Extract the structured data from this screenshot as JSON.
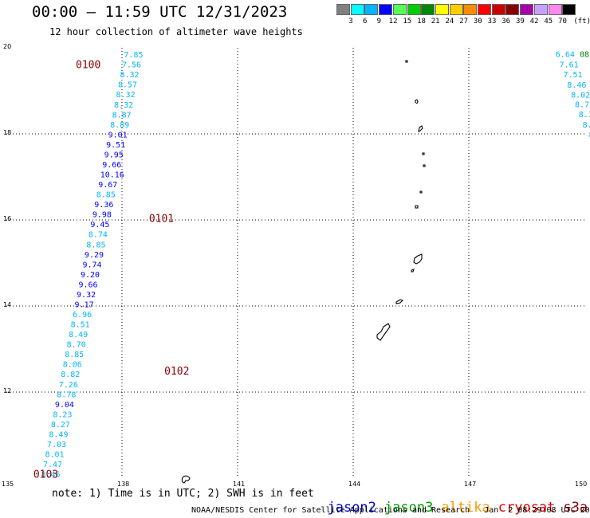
{
  "header": {
    "title": "00:00 – 11:59 UTC 12/31/2023",
    "subtitle": "12 hour collection of altimeter wave heights"
  },
  "legend": {
    "unit": "(ft)",
    "bins": [
      {
        "label": "3",
        "color": "#808080"
      },
      {
        "label": "6",
        "color": "#00ffff"
      },
      {
        "label": "9",
        "color": "#00b4ff"
      },
      {
        "label": "12",
        "color": "#0000ff"
      },
      {
        "label": "15",
        "color": "#55ff55"
      },
      {
        "label": "18",
        "color": "#00cc00"
      },
      {
        "label": "21",
        "color": "#008800"
      },
      {
        "label": "24",
        "color": "#ffff00"
      },
      {
        "label": "27",
        "color": "#ffcc00"
      },
      {
        "label": "30",
        "color": "#ff8c00"
      },
      {
        "label": "33",
        "color": "#ff0000"
      },
      {
        "label": "36",
        "color": "#cc0000"
      },
      {
        "label": "39",
        "color": "#880000"
      },
      {
        "label": "42",
        "color": "#aa00aa"
      },
      {
        "label": "45",
        "color": "#c8a0ff"
      },
      {
        "label": "70",
        "color": "#ff88ee"
      },
      {
        "label": "",
        "color": "#000000"
      }
    ]
  },
  "axes": {
    "lon_ticks": [
      "135",
      "138",
      "141",
      "144",
      "147",
      "150"
    ],
    "lat_ticks": [
      "20",
      "18",
      "16",
      "14",
      "12",
      "10"
    ],
    "lon_range": [
      135,
      150
    ],
    "lat_range": [
      10,
      20
    ]
  },
  "tracks": {
    "west_track": {
      "start_lat": 10.1,
      "end_lat": 19.85,
      "start_lon": 135.9,
      "end_lon": 138.05,
      "values": [
        "8.46",
        "7.47",
        "8.01",
        "7.03",
        "8.49",
        "8.27",
        "8.23",
        "9.04",
        "8.78",
        "7.26",
        "8.82",
        "8.06",
        "8.85",
        "8.70",
        "8.49",
        "8.51",
        "6.96",
        "9.17",
        "9.32",
        "9.66",
        "9.20",
        "9.74",
        "9.29",
        "8.85",
        "8.74",
        "9.45",
        "9.98",
        "9.36",
        "8.85",
        "9.67",
        "10.16",
        "9.66",
        "9.95",
        "9.51",
        "9.01",
        "8.89",
        "8.87",
        "8.32",
        "8.32",
        "8.57",
        "8.32",
        "7.56",
        "7.85"
      ],
      "colors": [
        "#00b4ff",
        "#00b4ff",
        "#00b4ff",
        "#00b4ff",
        "#00b4ff",
        "#00b4ff",
        "#00b4ff",
        "#0000ff",
        "#00b4ff",
        "#00b4ff",
        "#00b4ff",
        "#00b4ff",
        "#00b4ff",
        "#00b4ff",
        "#00b4ff",
        "#00b4ff",
        "#00b4ff",
        "#0000ff",
        "#0000ff",
        "#0000ff",
        "#0000ff",
        "#0000ff",
        "#0000ff",
        "#00b4ff",
        "#00b4ff",
        "#0000ff",
        "#0000ff",
        "#0000ff",
        "#00b4ff",
        "#0000ff",
        "#0000ff",
        "#0000ff",
        "#0000ff",
        "#0000ff",
        "#0000ff",
        "#00b4ff",
        "#00b4ff",
        "#00b4ff",
        "#00b4ff",
        "#00b4ff",
        "#00b4ff",
        "#00b4ff",
        "#00b4ff"
      ]
    },
    "east_track": {
      "values": [
        "6.64",
        "7.61",
        "7.51",
        "8.46",
        "8.02",
        "8.72",
        "8.38",
        "8.43",
        "8.4",
        "7."
      ],
      "lons": [
        149.5,
        149.6,
        149.7,
        149.8,
        149.9,
        150.0,
        150.1,
        150.2,
        150.3,
        150.4
      ],
      "lats": [
        19.86,
        19.62,
        19.39,
        19.15,
        18.92,
        18.69,
        18.46,
        18.22,
        17.99,
        17.76
      ],
      "color": "#00b4ff",
      "edge_label": "08",
      "edge_color": "#008800"
    },
    "time_labels": [
      {
        "text": "0100",
        "lon": 136.8,
        "lat": 19.62
      },
      {
        "text": "0101",
        "lon": 138.7,
        "lat": 16.05
      },
      {
        "text": "0102",
        "lon": 139.1,
        "lat": 12.5
      },
      {
        "text": "0103",
        "lon": 135.7,
        "lat": 10.1
      }
    ],
    "time_label_color": "#8b0000"
  },
  "note": "note: 1) Time is in UTC; 2) SWH is in feet",
  "satellites": [
    {
      "name": "jason2",
      "color": "#0000cc"
    },
    {
      "name": "jason3",
      "color": "#009900"
    },
    {
      "name": "altika",
      "color": "#ff9900"
    },
    {
      "name": "cryosat",
      "color": "#dd0000"
    },
    {
      "name": "s3a",
      "color": "#8b0000"
    }
  ],
  "credit": "NOAA/NESDIS Center for Satellite Applications and Research   Jan  2 08:29:08 UTC 2024"
}
